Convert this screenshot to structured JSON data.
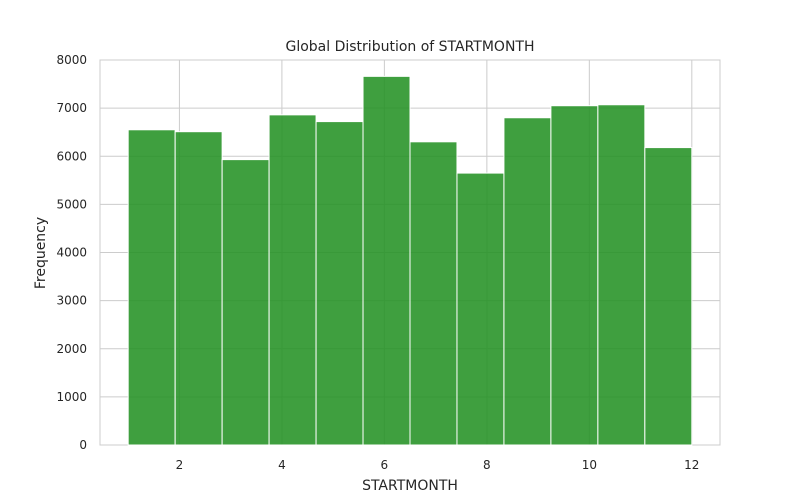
{
  "chart_data": {
    "type": "bar",
    "title": "Global Distribution of STARTMONTH",
    "xlabel": "STARTMONTH",
    "ylabel": "Frequency",
    "bin_edges": [
      1.0,
      1.9167,
      2.8333,
      3.75,
      4.6667,
      5.5833,
      6.5,
      7.4167,
      8.3333,
      9.25,
      10.1667,
      11.0833,
      12.0
    ],
    "values": [
      6550,
      6510,
      5930,
      6860,
      6720,
      7660,
      6300,
      5650,
      6800,
      7050,
      7070,
      6180
    ],
    "xlim": [
      0.45,
      12.55
    ],
    "ylim": [
      0,
      8000
    ],
    "xticks": [
      "2",
      "4",
      "6",
      "8",
      "10",
      "12"
    ],
    "yticks": [
      "0",
      "1000",
      "2000",
      "3000",
      "4000",
      "5000",
      "6000",
      "7000",
      "8000"
    ],
    "grid": true,
    "bar_color": "#229122",
    "legend": "none"
  }
}
